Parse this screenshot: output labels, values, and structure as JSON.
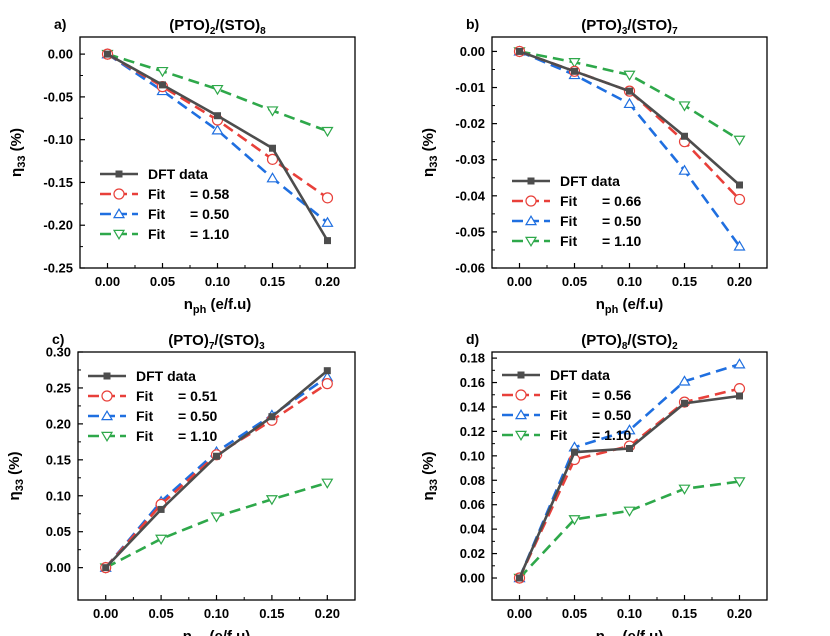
{
  "panels": [
    {
      "id": "a",
      "label": "a)",
      "title": {
        "main": "(PTO)",
        "sub1": "2",
        "mid": "/(STO)",
        "sub2": "8"
      },
      "xlabel": {
        "main": "n",
        "sub": "ph",
        "rest": " (e/f.u)"
      },
      "ylabel": {
        "main": "η",
        "sub": "33",
        "rest": " (%)"
      },
      "xlim": [
        -0.025,
        0.225
      ],
      "ylim": [
        -0.25,
        0.02
      ],
      "xticks": [
        "0.00",
        "0.05",
        "0.10",
        "0.15",
        "0.20"
      ],
      "yticks": [
        "0.00",
        "-0.05",
        "-0.10",
        "-0.15",
        "-0.20",
        "-0.25"
      ],
      "x": [
        0.0,
        0.05,
        0.1,
        0.15,
        0.2
      ],
      "series": [
        {
          "name": "DFT data",
          "values": [
            0.0,
            -0.036,
            -0.072,
            -0.11,
            -0.218
          ]
        },
        {
          "name": "Fit",
          "param": "= 0.58",
          "values": [
            0.0,
            -0.038,
            -0.077,
            -0.123,
            -0.168
          ]
        },
        {
          "name": "Fit",
          "param": "= 0.50",
          "values": [
            0.0,
            -0.043,
            -0.089,
            -0.145,
            -0.197
          ]
        },
        {
          "name": "Fit",
          "param": "= 1.10",
          "values": [
            0.0,
            -0.02,
            -0.041,
            -0.066,
            -0.09
          ]
        }
      ]
    },
    {
      "id": "b",
      "label": "b)",
      "title": {
        "main": "(PTO)",
        "sub1": "3",
        "mid": "/(STO)",
        "sub2": "7"
      },
      "xlabel": {
        "main": "n",
        "sub": "ph",
        "rest": " (e/f.u)"
      },
      "ylabel": {
        "main": "η",
        "sub": "33",
        "rest": " (%)"
      },
      "xlim": [
        -0.025,
        0.225
      ],
      "ylim": [
        -0.06,
        0.004
      ],
      "xticks": [
        "0.00",
        "0.05",
        "0.10",
        "0.15",
        "0.20"
      ],
      "yticks": [
        "0.00",
        "-0.01",
        "-0.02",
        "-0.03",
        "-0.04",
        "-0.05",
        "-0.06"
      ],
      "x": [
        0.0,
        0.05,
        0.1,
        0.15,
        0.2
      ],
      "series": [
        {
          "name": "DFT data",
          "values": [
            0.0,
            -0.0055,
            -0.011,
            -0.0235,
            -0.037
          ]
        },
        {
          "name": "Fit",
          "param": "= 0.66",
          "values": [
            0.0,
            -0.0055,
            -0.011,
            -0.025,
            -0.041
          ]
        },
        {
          "name": "Fit",
          "param": "= 0.50",
          "values": [
            0.0,
            -0.0065,
            -0.0145,
            -0.033,
            -0.054
          ]
        },
        {
          "name": "Fit",
          "param": "= 1.10",
          "values": [
            0.0,
            -0.003,
            -0.0065,
            -0.015,
            -0.0245
          ]
        }
      ]
    },
    {
      "id": "c",
      "label": "c)",
      "title": {
        "main": "(PTO)",
        "sub1": "7",
        "mid": "/(STO)",
        "sub2": "3"
      },
      "xlabel": {
        "main": "n",
        "sub": "ph",
        "rest": " (e/f.u)"
      },
      "ylabel": {
        "main": "η",
        "sub": "33",
        "rest": " (%)"
      },
      "xlim": [
        -0.025,
        0.225
      ],
      "ylim": [
        -0.045,
        0.3
      ],
      "xticks": [
        "0.00",
        "0.05",
        "0.10",
        "0.15",
        "0.20"
      ],
      "yticks": [
        "0.00",
        "0.05",
        "0.10",
        "0.15",
        "0.20",
        "0.25",
        "0.30"
      ],
      "x": [
        0.0,
        0.05,
        0.1,
        0.15,
        0.2
      ],
      "series": [
        {
          "name": "DFT data",
          "values": [
            0.0,
            0.081,
            0.155,
            0.21,
            0.274
          ]
        },
        {
          "name": "Fit",
          "param": "= 0.51",
          "values": [
            0.0,
            0.088,
            0.157,
            0.205,
            0.256
          ]
        },
        {
          "name": "Fit",
          "param": "= 0.50",
          "values": [
            0.0,
            0.092,
            0.161,
            0.212,
            0.265
          ]
        },
        {
          "name": "Fit",
          "param": "= 1.10",
          "values": [
            0.0,
            0.04,
            0.071,
            0.095,
            0.118
          ]
        }
      ]
    },
    {
      "id": "d",
      "label": "d)",
      "title": {
        "main": "(PTO)",
        "sub1": "8",
        "mid": "/(STO)",
        "sub2": "2"
      },
      "xlabel": {
        "main": "n",
        "sub": "ph",
        "rest": " (e/f.u)"
      },
      "ylabel": {
        "main": "η",
        "sub": "33",
        "rest": " (%)"
      },
      "xlim": [
        -0.025,
        0.225
      ],
      "ylim": [
        -0.018,
        0.185
      ],
      "xticks": [
        "0.00",
        "0.05",
        "0.10",
        "0.15",
        "0.20"
      ],
      "yticks": [
        "0.00",
        "0.02",
        "0.04",
        "0.06",
        "0.08",
        "0.10",
        "0.12",
        "0.14",
        "0.16",
        "0.18"
      ],
      "x": [
        0.0,
        0.05,
        0.1,
        0.15,
        0.2
      ],
      "series": [
        {
          "name": "DFT data",
          "values": [
            0.0,
            0.103,
            0.106,
            0.143,
            0.149
          ]
        },
        {
          "name": "Fit",
          "param": "= 0.56",
          "values": [
            0.0,
            0.097,
            0.108,
            0.144,
            0.155
          ]
        },
        {
          "name": "Fit",
          "param": "= 0.50",
          "values": [
            0.0,
            0.107,
            0.121,
            0.161,
            0.175
          ]
        },
        {
          "name": "Fit",
          "param": "= 1.10",
          "values": [
            0.0,
            0.048,
            0.055,
            0.073,
            0.079
          ]
        }
      ]
    }
  ],
  "styles": {
    "colors": [
      "#4d4d4d",
      "#e8403a",
      "#1f6fe0",
      "#2ea84a"
    ],
    "markers": [
      "square",
      "circle",
      "triangle-up",
      "triangle-down"
    ],
    "dashed": [
      false,
      true,
      true,
      true
    ]
  },
  "chart_data": [
    {
      "type": "line",
      "title": "(PTO)2/(STO)8",
      "xlabel": "nph (e/f.u)",
      "ylabel": "η33 (%)",
      "xlim": [
        -0.025,
        0.225
      ],
      "ylim": [
        -0.25,
        0.02
      ],
      "x": [
        0.0,
        0.05,
        0.1,
        0.15,
        0.2
      ],
      "series": [
        {
          "name": "DFT data",
          "values": [
            0.0,
            -0.036,
            -0.072,
            -0.11,
            -0.218
          ]
        },
        {
          "name": "Fit = 0.58",
          "values": [
            0.0,
            -0.038,
            -0.077,
            -0.123,
            -0.168
          ]
        },
        {
          "name": "Fit = 0.50",
          "values": [
            0.0,
            -0.043,
            -0.089,
            -0.145,
            -0.197
          ]
        },
        {
          "name": "Fit = 1.10",
          "values": [
            0.0,
            -0.02,
            -0.041,
            -0.066,
            -0.09
          ]
        }
      ],
      "legend": "lower-left",
      "grid": false
    },
    {
      "type": "line",
      "title": "(PTO)3/(STO)7",
      "xlabel": "nph (e/f.u)",
      "ylabel": "η33 (%)",
      "xlim": [
        -0.025,
        0.225
      ],
      "ylim": [
        -0.06,
        0.004
      ],
      "x": [
        0.0,
        0.05,
        0.1,
        0.15,
        0.2
      ],
      "series": [
        {
          "name": "DFT data",
          "values": [
            0.0,
            -0.0055,
            -0.011,
            -0.0235,
            -0.037
          ]
        },
        {
          "name": "Fit = 0.66",
          "values": [
            0.0,
            -0.0055,
            -0.011,
            -0.025,
            -0.041
          ]
        },
        {
          "name": "Fit = 0.50",
          "values": [
            0.0,
            -0.0065,
            -0.0145,
            -0.033,
            -0.054
          ]
        },
        {
          "name": "Fit = 1.10",
          "values": [
            0.0,
            -0.003,
            -0.0065,
            -0.015,
            -0.0245
          ]
        }
      ],
      "legend": "lower-left",
      "grid": false
    },
    {
      "type": "line",
      "title": "(PTO)7/(STO)3",
      "xlabel": "nph (e/f.u)",
      "ylabel": "η33 (%)",
      "xlim": [
        -0.025,
        0.225
      ],
      "ylim": [
        -0.045,
        0.3
      ],
      "x": [
        0.0,
        0.05,
        0.1,
        0.15,
        0.2
      ],
      "series": [
        {
          "name": "DFT data",
          "values": [
            0.0,
            0.081,
            0.155,
            0.21,
            0.274
          ]
        },
        {
          "name": "Fit = 0.51",
          "values": [
            0.0,
            0.088,
            0.157,
            0.205,
            0.256
          ]
        },
        {
          "name": "Fit = 0.50",
          "values": [
            0.0,
            0.092,
            0.161,
            0.212,
            0.265
          ]
        },
        {
          "name": "Fit = 1.10",
          "values": [
            0.0,
            0.04,
            0.071,
            0.095,
            0.118
          ]
        }
      ],
      "legend": "upper-left",
      "grid": false
    },
    {
      "type": "line",
      "title": "(PTO)8/(STO)2",
      "xlabel": "nph (e/f.u)",
      "ylabel": "η33 (%)",
      "xlim": [
        -0.025,
        0.225
      ],
      "ylim": [
        -0.018,
        0.185
      ],
      "x": [
        0.0,
        0.05,
        0.1,
        0.15,
        0.2
      ],
      "series": [
        {
          "name": "DFT data",
          "values": [
            0.0,
            0.103,
            0.106,
            0.143,
            0.149
          ]
        },
        {
          "name": "Fit = 0.56",
          "values": [
            0.0,
            0.097,
            0.108,
            0.144,
            0.155
          ]
        },
        {
          "name": "Fit = 0.50",
          "values": [
            0.0,
            0.107,
            0.121,
            0.161,
            0.175
          ]
        },
        {
          "name": "Fit = 1.10",
          "values": [
            0.0,
            0.048,
            0.055,
            0.073,
            0.079
          ]
        }
      ],
      "legend": "upper-left",
      "grid": false
    }
  ]
}
